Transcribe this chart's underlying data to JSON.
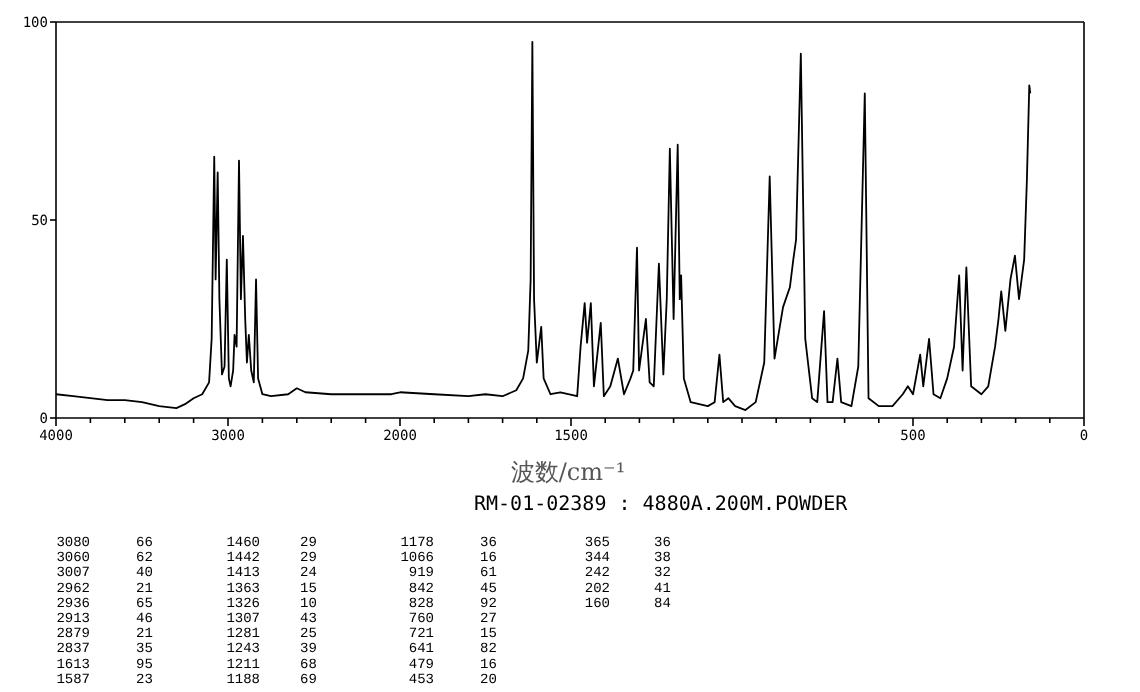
{
  "chart_data": [
    {
      "type": "line",
      "color": "#000000",
      "xlim": [
        4000,
        2000
      ],
      "ylim": [
        0,
        100
      ],
      "yticks": [
        0,
        50,
        100
      ],
      "tick_labels": "xy",
      "xticks": [
        4000,
        {
          "value": 3800,
          "label": null
        },
        {
          "value": 3600,
          "label": null
        },
        {
          "value": 3400,
          "label": null
        },
        {
          "value": 3200,
          "label": null
        },
        3000,
        {
          "value": 2800,
          "label": null
        },
        {
          "value": 2600,
          "label": null
        },
        {
          "value": 2400,
          "label": null
        },
        {
          "value": 2200,
          "label": null
        }
      ],
      "x": [
        4000,
        3900,
        3800,
        3700,
        3600,
        3500,
        3400,
        3300,
        3250,
        3200,
        3150,
        3110,
        3095,
        3080,
        3072,
        3060,
        3050,
        3035,
        3020,
        3007,
        2995,
        2985,
        2970,
        2962,
        2950,
        2936,
        2925,
        2913,
        2900,
        2890,
        2879,
        2865,
        2850,
        2837,
        2825,
        2800,
        2750,
        2650,
        2600,
        2550,
        2400,
        2200,
        2050,
        2000
      ],
      "values": [
        6,
        5.5,
        5,
        4.5,
        4.5,
        4,
        3,
        2.5,
        3.5,
        5,
        6,
        9,
        20,
        66,
        35,
        62,
        30,
        11,
        13,
        40,
        10,
        8,
        12,
        21,
        18,
        65,
        30,
        46,
        25,
        14,
        21,
        12,
        9,
        35,
        10,
        6,
        5.5,
        6,
        7.5,
        6.5,
        6,
        6,
        6,
        6.5
      ]
    },
    {
      "type": "line",
      "xlabel": "波数/cm⁻¹",
      "color": "#000000",
      "xlim": [
        2000,
        0
      ],
      "ylim": [
        0,
        100
      ],
      "tick_labels": "x",
      "xticks": [
        2000,
        {
          "value": 1900,
          "label": null
        },
        {
          "value": 1800,
          "label": null
        },
        {
          "value": 1700,
          "label": null
        },
        {
          "value": 1600,
          "label": null
        },
        1500,
        {
          "value": 1400,
          "label": null
        },
        {
          "value": 1300,
          "label": null
        },
        {
          "value": 1200,
          "label": null
        },
        {
          "value": 1100,
          "label": null
        },
        {
          "value": 1000,
          "label": null
        },
        {
          "value": 900,
          "label": null
        },
        {
          "value": 800,
          "label": null
        },
        {
          "value": 700,
          "label": null
        },
        {
          "value": 600,
          "label": null
        },
        500,
        {
          "value": 400,
          "label": null
        },
        {
          "value": 300,
          "label": null
        },
        {
          "value": 200,
          "label": null
        },
        {
          "value": 100,
          "label": null
        },
        0
      ],
      "x": [
        2000,
        1900,
        1800,
        1750,
        1700,
        1660,
        1640,
        1625,
        1618,
        1613,
        1608,
        1600,
        1587,
        1580,
        1560,
        1531,
        1482,
        1472,
        1460,
        1453,
        1442,
        1433,
        1413,
        1404,
        1385,
        1363,
        1345,
        1326,
        1318,
        1307,
        1301,
        1281,
        1270,
        1258,
        1243,
        1230,
        1220,
        1211,
        1200,
        1188,
        1182,
        1178,
        1170,
        1150,
        1100,
        1080,
        1066,
        1055,
        1040,
        1020,
        990,
        960,
        935,
        919,
        905,
        880,
        860,
        850,
        842,
        828,
        815,
        795,
        780,
        760,
        750,
        735,
        721,
        710,
        680,
        660,
        641,
        630,
        600,
        560,
        530,
        515,
        500,
        479,
        470,
        453,
        440,
        420,
        400,
        380,
        365,
        355,
        344,
        330,
        300,
        280,
        260,
        250,
        242,
        230,
        215,
        202,
        190,
        175,
        167,
        160,
        157
      ],
      "values": [
        6.5,
        6,
        5.5,
        6,
        5.5,
        7,
        10,
        17,
        35,
        95,
        30,
        14,
        23,
        10,
        6,
        6.5,
        5.5,
        18,
        29,
        19,
        29,
        8,
        24,
        5.5,
        8,
        15,
        6,
        10,
        12,
        43,
        12,
        25,
        9,
        8,
        39,
        11,
        30,
        68,
        25,
        69,
        30,
        36,
        10,
        4,
        3,
        4,
        16,
        4,
        5,
        3,
        2,
        4,
        14,
        61,
        15,
        28,
        33,
        40,
        45,
        92,
        20,
        5,
        4,
        27,
        4,
        4,
        15,
        4,
        3,
        13,
        82,
        5,
        3,
        3,
        6,
        8,
        6,
        16,
        8,
        20,
        6,
        5,
        10,
        18,
        36,
        12,
        38,
        8,
        6,
        8,
        18,
        25,
        32,
        22,
        35,
        41,
        30,
        40,
        60,
        84,
        82
      ],
      "annotations": [
        "RM-01-02389 : 4880A.200M.POWDER",
        "3080",
        "66",
        "3060",
        "62",
        "3007",
        "40",
        "2962",
        "21",
        "2936",
        "65",
        "2913",
        "46",
        "2879",
        "21",
        "2837",
        "35",
        "1613",
        "95",
        "1587",
        "23",
        "1460",
        "29",
        "1442",
        "29",
        "1413",
        "24",
        "1363",
        "15",
        "1326",
        "10",
        "1307",
        "43",
        "1281",
        "25",
        "1243",
        "39",
        "1211",
        "68",
        "1188",
        "69",
        "1178",
        "36",
        "1066",
        "16",
        "919",
        "61",
        "842",
        "45",
        "828",
        "92",
        "760",
        "27",
        "721",
        "15",
        "641",
        "82",
        "479",
        "16",
        "453",
        "20",
        "365",
        "36",
        "344",
        "38",
        "242",
        "32",
        "202",
        "41",
        "160",
        "84"
      ]
    }
  ]
}
